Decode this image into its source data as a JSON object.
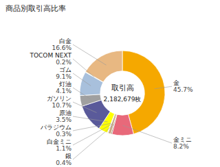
{
  "chart_data": {
    "type": "donut",
    "title": "商品別取引高比率",
    "annotations": [
      "取引高",
      "2,182,679枚"
    ],
    "categories": [
      "金",
      "金ミニ",
      "銀",
      "白金ミニ",
      "パラジウム",
      "原油",
      "ガソリン",
      "灯油",
      "ゴム",
      "TOCOM NEXT",
      "白金"
    ],
    "values": [
      45.7,
      8.2,
      0.4,
      1.1,
      0.3,
      3.5,
      10.7,
      4.1,
      9.1,
      0.2,
      16.6
    ],
    "value_labels": [
      "45.7%",
      "8.2%",
      "0.4%",
      "1.1%",
      "0.3%",
      "3.5%",
      "10.7%",
      "4.1%",
      "9.1%",
      "0.2%",
      "16.6%"
    ],
    "colors": [
      "#F5A800",
      "#E8697A",
      "#7A5C30",
      "#C8A882",
      "#C8C0DC",
      "#FFFF00",
      "#5A5A9A",
      "#A0A0A0",
      "#A8C0DC",
      "#B8D8B8",
      "#E8B882"
    ],
    "data_labels": true
  }
}
